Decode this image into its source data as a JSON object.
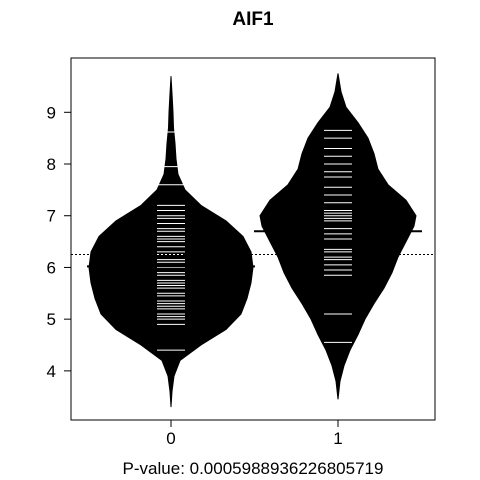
{
  "chart_data": {
    "type": "beanplot",
    "title": "AIF1",
    "xlabel": "P-value: 0.0005988936226805719",
    "ylabel": "",
    "categories": [
      "0",
      "1"
    ],
    "ylim": [
      3.05,
      10.05
    ],
    "yticks": [
      4,
      5,
      6,
      7,
      8,
      9
    ],
    "overall_mean": 6.25,
    "grid": false,
    "groups": [
      {
        "category": "0",
        "mean": 6.02,
        "range": [
          3.3,
          9.7
        ],
        "density": [
          [
            3.3,
            0.0
          ],
          [
            3.6,
            0.01
          ],
          [
            3.9,
            0.03
          ],
          [
            4.2,
            0.09
          ],
          [
            4.5,
            0.3
          ],
          [
            4.8,
            0.55
          ],
          [
            5.1,
            0.7
          ],
          [
            5.4,
            0.76
          ],
          [
            5.7,
            0.8
          ],
          [
            6.0,
            0.82
          ],
          [
            6.3,
            0.8
          ],
          [
            6.6,
            0.72
          ],
          [
            6.9,
            0.55
          ],
          [
            7.2,
            0.3
          ],
          [
            7.5,
            0.14
          ],
          [
            7.8,
            0.07
          ],
          [
            8.1,
            0.05
          ],
          [
            8.4,
            0.04
          ],
          [
            8.7,
            0.025
          ],
          [
            9.0,
            0.02
          ],
          [
            9.3,
            0.012
          ],
          [
            9.7,
            0.0
          ]
        ],
        "observations": [
          4.9,
          5.0,
          5.05,
          5.1,
          5.2,
          5.25,
          5.3,
          5.35,
          5.45,
          5.5,
          5.6,
          5.65,
          5.7,
          5.75,
          5.85,
          5.9,
          6.0,
          6.1,
          6.15,
          6.25,
          6.3,
          6.4,
          6.5,
          6.55,
          6.6,
          6.7,
          6.75,
          6.85,
          6.95,
          7.0,
          7.1,
          7.2,
          4.4,
          7.6,
          7.95,
          8.62
        ]
      },
      {
        "category": "1",
        "mean": 6.7,
        "range": [
          3.45,
          9.75
        ],
        "density": [
          [
            3.45,
            0.0
          ],
          [
            3.8,
            0.02
          ],
          [
            4.1,
            0.06
          ],
          [
            4.4,
            0.12
          ],
          [
            4.7,
            0.2
          ],
          [
            5.0,
            0.27
          ],
          [
            5.3,
            0.36
          ],
          [
            5.6,
            0.46
          ],
          [
            5.9,
            0.54
          ],
          [
            6.2,
            0.6
          ],
          [
            6.5,
            0.68
          ],
          [
            6.8,
            0.76
          ],
          [
            7.0,
            0.78
          ],
          [
            7.3,
            0.68
          ],
          [
            7.6,
            0.5
          ],
          [
            7.9,
            0.4
          ],
          [
            8.2,
            0.36
          ],
          [
            8.5,
            0.3
          ],
          [
            8.8,
            0.2
          ],
          [
            9.1,
            0.08
          ],
          [
            9.4,
            0.03
          ],
          [
            9.75,
            0.0
          ]
        ],
        "observations": [
          4.55,
          5.1,
          5.85,
          5.95,
          6.05,
          6.15,
          6.2,
          6.3,
          6.35,
          6.55,
          6.65,
          6.75,
          6.9,
          6.95,
          7.0,
          7.05,
          7.1,
          7.25,
          7.4,
          7.55,
          7.75,
          7.85,
          8.0,
          8.15,
          8.3,
          8.5,
          8.65
        ]
      }
    ]
  }
}
